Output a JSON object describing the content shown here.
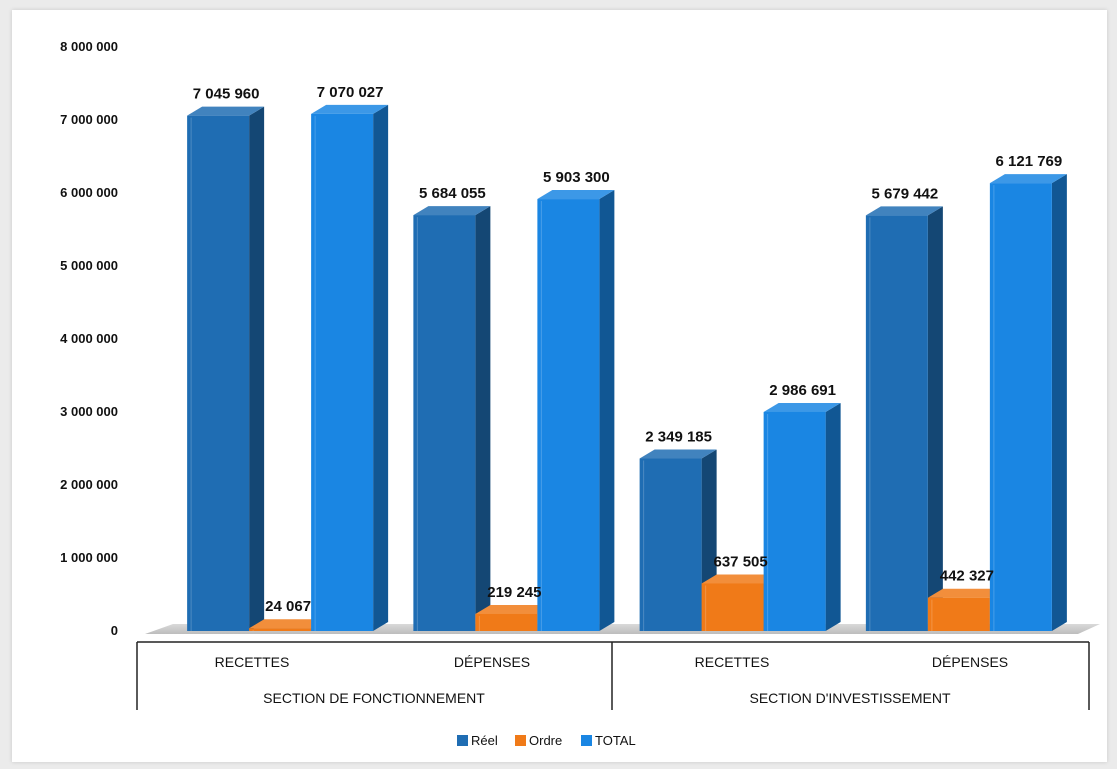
{
  "chart_data": {
    "type": "bar",
    "style": "3d-clustered-column",
    "categories": [
      "RECETTES",
      "DÉPENSES",
      "RECETTES",
      "DÉPENSES"
    ],
    "groups": [
      {
        "label": "SECTION DE FONCTIONNEMENT",
        "categories": [
          0,
          1
        ]
      },
      {
        "label": "SECTION D'INVESTISSEMENT",
        "categories": [
          2,
          3
        ]
      }
    ],
    "series": [
      {
        "name": "Réel",
        "color": "#1f6db3",
        "values": [
          7045960,
          5684055,
          2349185,
          5679442
        ]
      },
      {
        "name": "Ordre",
        "color": "#f07a18",
        "values": [
          24067,
          219245,
          637505,
          442327
        ]
      },
      {
        "name": "TOTAL",
        "color": "#1a86e3",
        "values": [
          7070027,
          5903300,
          2986691,
          6121769
        ]
      }
    ],
    "data_labels": [
      [
        "7 045 960",
        "5 684 055",
        "2 349 185",
        "5 679 442"
      ],
      [
        "24 067",
        "219 245",
        "637 505",
        "442 327"
      ],
      [
        "7 070 027",
        "5 903 300",
        "2 986 691",
        "6 121 769"
      ]
    ],
    "yticks": [
      0,
      1000000,
      2000000,
      3000000,
      4000000,
      5000000,
      6000000,
      7000000,
      8000000
    ],
    "ytick_labels": [
      "0",
      "1 000 000",
      "2 000 000",
      "3 000 000",
      "4 000 000",
      "5 000 000",
      "6 000 000",
      "7 000 000",
      "8 000 000"
    ],
    "ylim": [
      0,
      8000000
    ],
    "grid": false,
    "legend": "bottom-center"
  }
}
